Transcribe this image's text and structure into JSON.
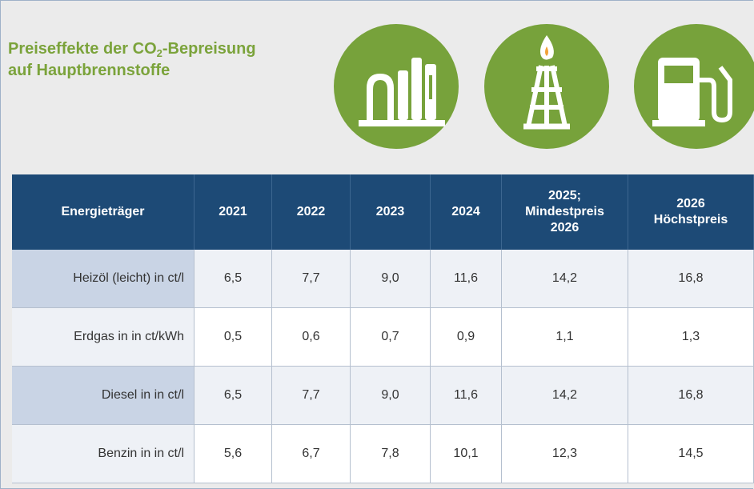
{
  "header": {
    "title_line1": {
      "text": "Preiseffekte der CO",
      "sub": "2",
      "rest": "-Bepreisung"
    },
    "title_line2": "auf Hauptbrennstoffe"
  },
  "table": {
    "columns": [
      [
        "Energieträger"
      ],
      [
        "2021"
      ],
      [
        "2022"
      ],
      [
        "2023"
      ],
      [
        "2024"
      ],
      [
        "2025;",
        "Mindestpreis",
        "2026"
      ],
      [
        "2026",
        "Höchstpreis"
      ]
    ],
    "rows": [
      [
        "Heizöl (leicht) in ct/l",
        "6,5",
        "7,7",
        "9,0",
        "11,6",
        "14,2",
        "16,8"
      ],
      [
        "Erdgas in in ct/kWh",
        "0,5",
        "0,6",
        "0,7",
        "0,9",
        "1,1",
        "1,3"
      ],
      [
        "Diesel in in ct/l",
        "6,5",
        "7,7",
        "9,0",
        "11,6",
        "14,2",
        "16,8"
      ],
      [
        "Benzin in in ct/l",
        "5,6",
        "6,7",
        "7,8",
        "10,1",
        "12,3",
        "14,5"
      ]
    ]
  }
}
